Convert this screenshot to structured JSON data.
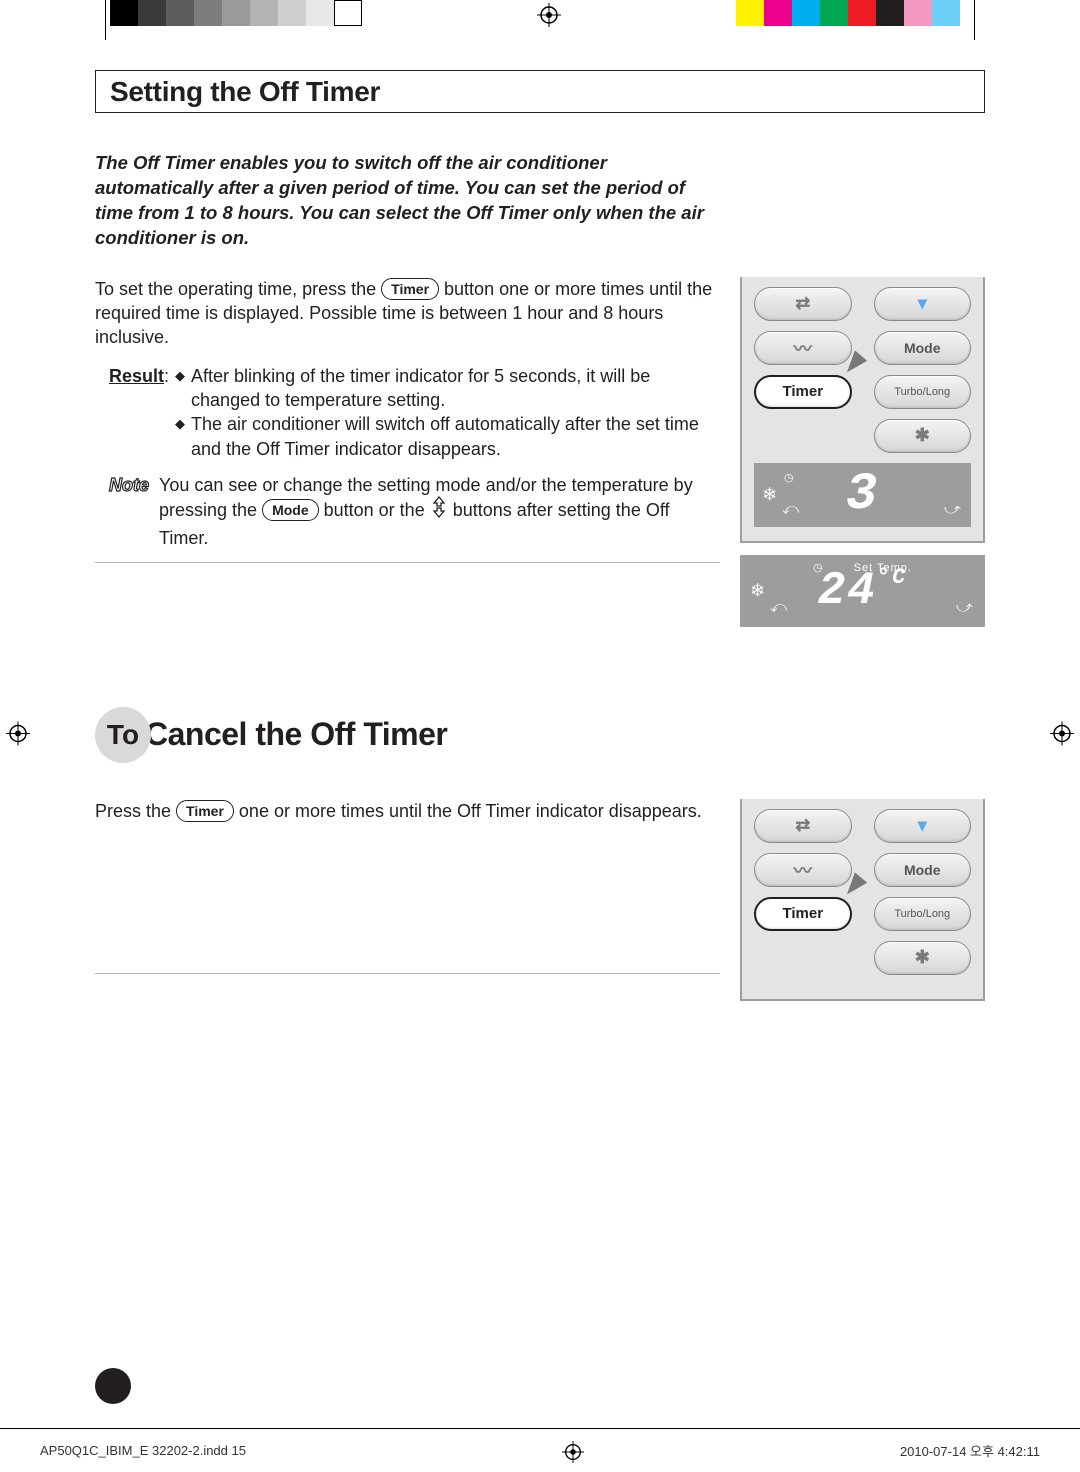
{
  "colorbar": {
    "left_swatches": [
      "#000000",
      "#3a3a3a",
      "#5d5d5d",
      "#7c7c7c",
      "#9a9a9a",
      "#b4b4b4",
      "#cfcfcf",
      "#e8e8e8",
      "#ffffff"
    ],
    "right_swatches": [
      "#fff200",
      "#ec008c",
      "#00aeef",
      "#00a651",
      "#ed1c24",
      "#231f20",
      "#f49ac1",
      "#6dcff6"
    ]
  },
  "section1": {
    "title": "Setting the Off Timer",
    "intro": "The Off Timer enables you to switch off the air conditioner automatically after a given period of time. You can set the period of time from 1 to 8 hours. You can select the Off Timer only when the air conditioner is on.",
    "para1_a": "To set the operating time, press the ",
    "para1_b": " button one or more times until the required time is displayed. Possible time is between 1 hour and 8 hours inclusive.",
    "result_label": "Result",
    "result_colon": ":",
    "bullet1": "After blinking of the timer indicator for 5 seconds, it will be changed to temperature setting.",
    "bullet2": "The air conditioner will switch off automatically after the set time and the Off Timer indicator disappears.",
    "note_label": "Note",
    "note_a": "You can see or change the setting mode and/or the temperature by pressing the ",
    "note_b": " button or the ",
    "note_c": " buttons after setting the Off Timer."
  },
  "pills": {
    "timer": "Timer",
    "mode": "Mode"
  },
  "remote": {
    "mode": "Mode",
    "timer": "Timer",
    "turbo": "Turbo/Long",
    "lcd_value": "3",
    "lcd_temp_value": "24",
    "lcd_temp_unit": "°C",
    "lcd_temp_label": "Set   Temp."
  },
  "section2": {
    "to": "To",
    "rest": " Cancel the Off Timer",
    "para_a": "Press the ",
    "para_b": " one or more times until the Off Timer indicator disappears."
  },
  "footer": {
    "left": "AP50Q1C_IBIM_E 32202-2.indd   15",
    "right": "2010-07-14   오후 4:42:11"
  }
}
